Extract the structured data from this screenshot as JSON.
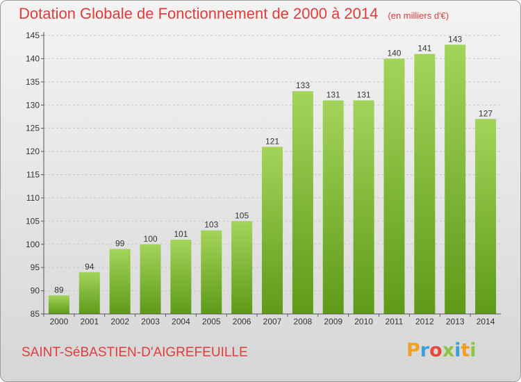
{
  "header": {
    "title": "Dotation Globale de Fonctionnement de 2000 à 2014",
    "unit": "(en milliers d'€)"
  },
  "footer": {
    "commune": "SAINT-SéBASTIEN-D'AIGREFEUILLE",
    "logo_letters": [
      "P",
      "r",
      "o",
      "x",
      "i",
      "t",
      "i"
    ],
    "logo_colors": [
      "#f0a020",
      "#3aa0d8",
      "#e84a3a",
      "#8cc63e",
      "#3aa0d8",
      "#f0a020",
      "#8cc63e"
    ]
  },
  "colors": {
    "title": "#e03c3c",
    "bar_light": "#a3d45a",
    "bar_dark": "#5e9a18",
    "grid": "#c8c8c8"
  },
  "chart_data": {
    "type": "bar",
    "categories": [
      "2000",
      "2001",
      "2002",
      "2003",
      "2004",
      "2005",
      "2006",
      "2007",
      "2008",
      "2009",
      "2010",
      "2011",
      "2012",
      "2013",
      "2014"
    ],
    "values": [
      89,
      94,
      99,
      100,
      101,
      103,
      105,
      121,
      133,
      131,
      131,
      140,
      141,
      143,
      127
    ],
    "ylim": [
      85,
      145
    ],
    "yticks": [
      85,
      90,
      95,
      100,
      105,
      110,
      115,
      120,
      125,
      130,
      135,
      140,
      145
    ],
    "grid": "horizontal dashed",
    "legend": "none"
  }
}
